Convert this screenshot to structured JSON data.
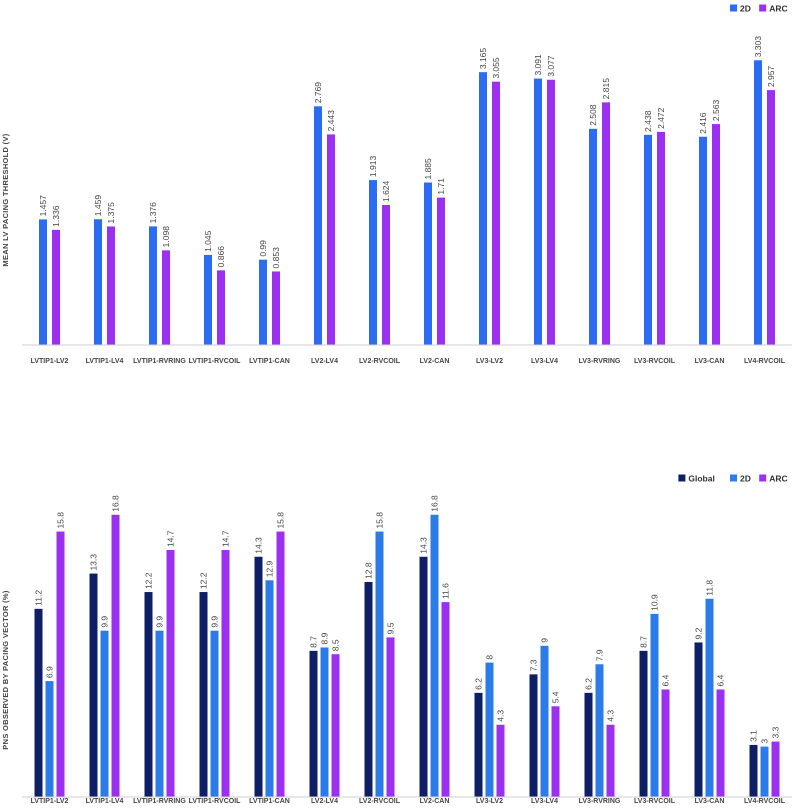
{
  "chart_data": [
    {
      "type": "bar",
      "ylabel": "MEAN LV PACING THRESHOLD (V)",
      "legend_position": "top-right",
      "grid": false,
      "ylim": [
        0,
        3.5
      ],
      "categories": [
        "LVTIP1-LV2",
        "LVTIP1-LV4",
        "LVTIP1-RVRING",
        "LVTIP1-RVCOIL",
        "LVTIP1-CAN",
        "LV2-LV4",
        "LV2-RVCOIL",
        "LV2-CAN",
        "LV3-LV2",
        "LV3-LV4",
        "LV3-RVRING",
        "LV3-RVCOIL",
        "LV3-CAN",
        "LV4-RVCOIL"
      ],
      "series": [
        {
          "name": "2D",
          "color": "#2B6CF0",
          "values": [
            1.457,
            1.459,
            1.376,
            1.045,
            0.99,
            2.769,
            1.913,
            1.885,
            3.165,
            3.091,
            2.508,
            2.438,
            2.416,
            3.303
          ]
        },
        {
          "name": "ARC",
          "color": "#9B30F0",
          "values": [
            1.336,
            1.375,
            1.098,
            0.866,
            0.853,
            2.443,
            1.624,
            1.71,
            3.055,
            3.077,
            2.815,
            2.472,
            2.563,
            2.957
          ]
        }
      ]
    },
    {
      "type": "bar",
      "ylabel": "PNS OBSERVED BY PACING VECTOR (%)",
      "legend_position": "top-right",
      "grid": false,
      "ylim": [
        0,
        18
      ],
      "categories": [
        "LVTIP1-LV2",
        "LVTIP1-LV4",
        "LVTIP1-RVRING",
        "LVTIP1-RVCOIL",
        "LVTIP1-CAN",
        "LV2-LV4",
        "LV2-RVCOIL",
        "LV2-CAN",
        "LV3-LV2",
        "LV3-LV4",
        "LV3-RVRING",
        "LV3-RVCOIL",
        "LV3-CAN",
        "LV4-RVCOIL"
      ],
      "series": [
        {
          "name": "Global",
          "color": "#0E1F66",
          "values": [
            11.2,
            13.3,
            12.2,
            12.2,
            14.3,
            8.7,
            12.8,
            14.3,
            6.2,
            7.3,
            6.2,
            8.7,
            9.2,
            3.1
          ]
        },
        {
          "name": "2D",
          "color": "#2B7BE8",
          "values": [
            6.9,
            9.9,
            9.9,
            9.9,
            12.9,
            8.9,
            15.8,
            16.8,
            8,
            9,
            7.9,
            10.9,
            11.8,
            3
          ]
        },
        {
          "name": "ARC",
          "color": "#9B30F0",
          "values": [
            15.8,
            16.8,
            14.7,
            14.7,
            15.8,
            8.5,
            9.5,
            11.6,
            4.3,
            5.4,
            4.3,
            6.4,
            6.4,
            3.3
          ]
        }
      ]
    }
  ]
}
